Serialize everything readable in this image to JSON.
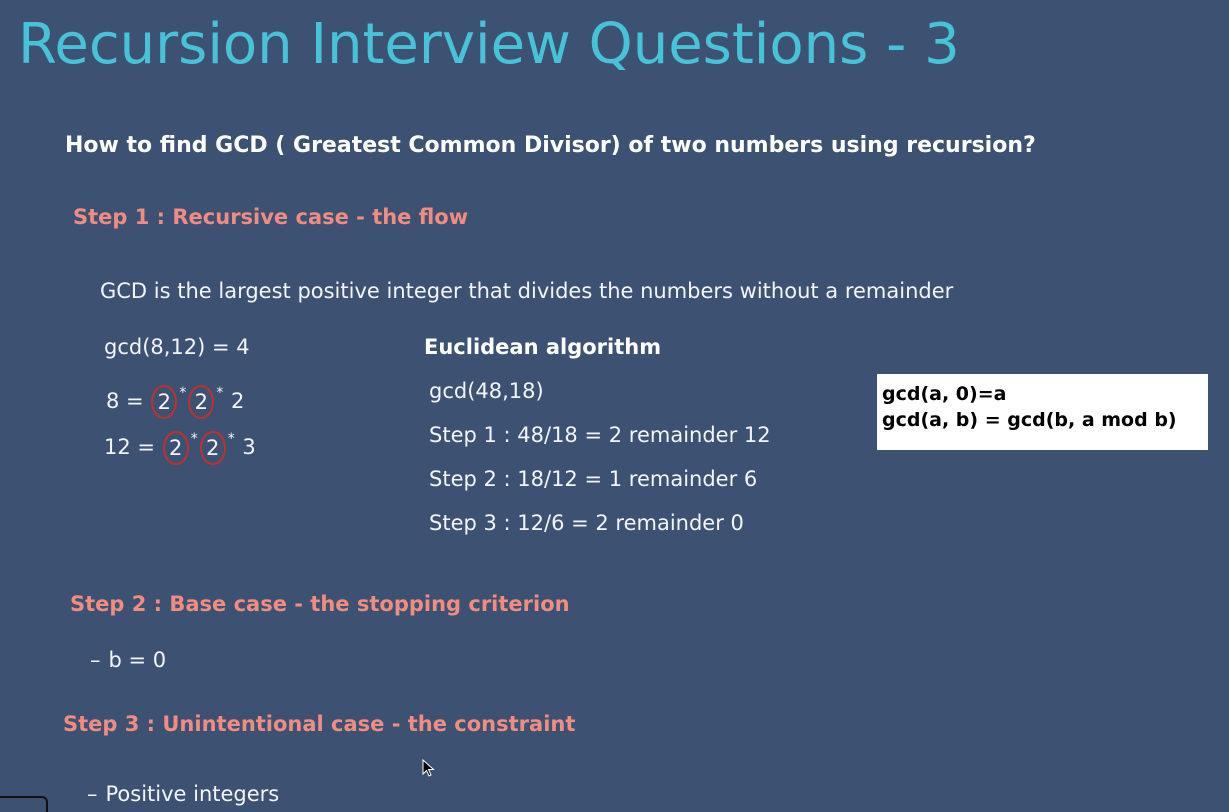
{
  "slide": {
    "title": "Recursion Interview Questions - 3",
    "question": "How to find GCD ( Greatest Common Divisor) of two numbers using recursion?"
  },
  "step1": {
    "heading": "Step 1 : Recursive case - the flow",
    "definition": "GCD is the largest positive integer that divides the numbers without a remainder",
    "example": "gcd(8,12) = 4",
    "factor8": {
      "lhs": "8 =",
      "f1": "2",
      "f2": "2",
      "f3": "2"
    },
    "factor12": {
      "lhs": "12 =",
      "f1": "2",
      "f2": "2",
      "f3": "3"
    },
    "euclid_heading": "Euclidean algorithm",
    "euclid_lines": [
      "gcd(48,18)",
      "Step 1 : 48/18 = 2 remainder 12",
      "Step 2 : 18/12 = 1 remainder 6",
      "Step 3 : 12/6 = 2 remainder 0"
    ],
    "formula": [
      "gcd(a, 0)=a",
      "gcd(a, b) = gcd(b, a mod b)"
    ]
  },
  "step2": {
    "heading": "Step 2 : Base case - the stopping criterion",
    "item": "b = 0"
  },
  "step3": {
    "heading": "Step 3 : Unintentional case - the constraint",
    "item": "Positive integers"
  },
  "symbols": {
    "dash": "–",
    "star": "*"
  }
}
